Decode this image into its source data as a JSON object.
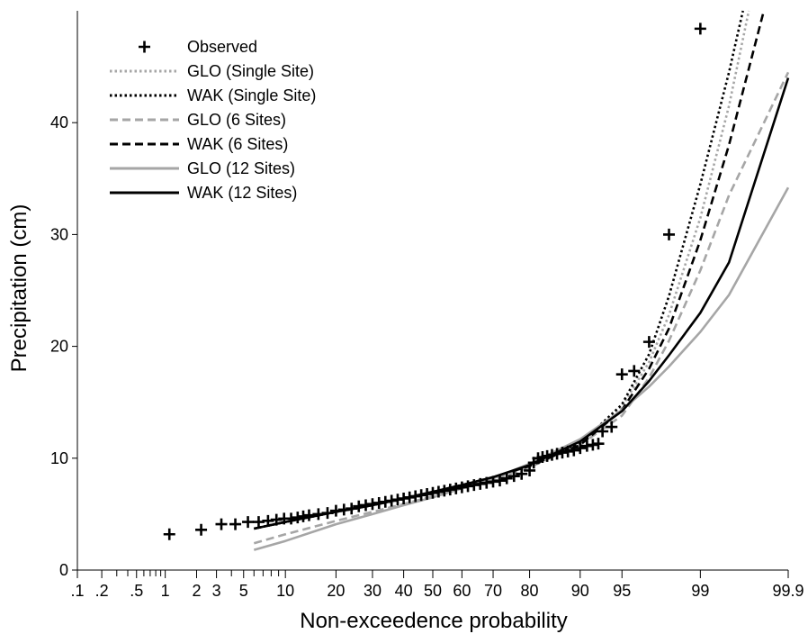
{
  "chart_data": {
    "type": "line",
    "title": "",
    "xlabel": "Non-exceedence probability",
    "ylabel": "Precipitation (cm)",
    "x_scale": "normal probability (%)",
    "xlim": [
      0.1,
      99.9
    ],
    "ylim": [
      0,
      50
    ],
    "x_ticks": [
      {
        "value": 0.1,
        "label": ".1"
      },
      {
        "value": 0.2,
        "label": ".2"
      },
      {
        "value": 0.5,
        "label": ".5"
      },
      {
        "value": 1,
        "label": "1"
      },
      {
        "value": 2,
        "label": "2"
      },
      {
        "value": 3,
        "label": "3"
      },
      {
        "value": 5,
        "label": "5"
      },
      {
        "value": 10,
        "label": "10"
      },
      {
        "value": 20,
        "label": "20"
      },
      {
        "value": 30,
        "label": "30"
      },
      {
        "value": 40,
        "label": "40"
      },
      {
        "value": 50,
        "label": "50"
      },
      {
        "value": 60,
        "label": "60"
      },
      {
        "value": 70,
        "label": "70"
      },
      {
        "value": 80,
        "label": "80"
      },
      {
        "value": 90,
        "label": "90"
      },
      {
        "value": 95,
        "label": "95"
      },
      {
        "value": 99,
        "label": "99"
      },
      {
        "value": 99.9,
        "label": "99.9"
      }
    ],
    "x_minor_ticks": [
      0.3,
      0.4,
      0.6,
      0.7,
      0.8,
      0.9,
      4,
      6,
      7,
      8,
      9
    ],
    "y_ticks": [
      0,
      10,
      20,
      30,
      40
    ],
    "legend_position": "top-left",
    "series": [
      {
        "name": "Observed",
        "kind": "marker",
        "color": "#000000",
        "points": [
          [
            1.1,
            3.2
          ],
          [
            2.2,
            3.6
          ],
          [
            3.3,
            4.1
          ],
          [
            4.3,
            4.1
          ],
          [
            5.4,
            4.3
          ],
          [
            6.5,
            4.3
          ],
          [
            7.6,
            4.4
          ],
          [
            8.7,
            4.5
          ],
          [
            9.8,
            4.6
          ],
          [
            10.9,
            4.6
          ],
          [
            12,
            4.7
          ],
          [
            13,
            4.8
          ],
          [
            14.1,
            4.9
          ],
          [
            16,
            5.0
          ],
          [
            18,
            5.1
          ],
          [
            20,
            5.3
          ],
          [
            22,
            5.4
          ],
          [
            24,
            5.5
          ],
          [
            26,
            5.7
          ],
          [
            28,
            5.8
          ],
          [
            30,
            5.9
          ],
          [
            32,
            6.0
          ],
          [
            34,
            6.1
          ],
          [
            36,
            6.2
          ],
          [
            38,
            6.3
          ],
          [
            40,
            6.4
          ],
          [
            42,
            6.5
          ],
          [
            44,
            6.6
          ],
          [
            46,
            6.7
          ],
          [
            48,
            6.8
          ],
          [
            50,
            6.9
          ],
          [
            52,
            7.0
          ],
          [
            54,
            7.1
          ],
          [
            56,
            7.2
          ],
          [
            58,
            7.3
          ],
          [
            60,
            7.4
          ],
          [
            62,
            7.5
          ],
          [
            64,
            7.6
          ],
          [
            66,
            7.7
          ],
          [
            68,
            7.8
          ],
          [
            70,
            7.9
          ],
          [
            72,
            8.0
          ],
          [
            74,
            8.2
          ],
          [
            76,
            8.4
          ],
          [
            78,
            8.6
          ],
          [
            80,
            8.9
          ],
          [
            81,
            9.6
          ],
          [
            82,
            10.0
          ],
          [
            83,
            10.1
          ],
          [
            84,
            10.2
          ],
          [
            85,
            10.3
          ],
          [
            86,
            10.4
          ],
          [
            87,
            10.5
          ],
          [
            88,
            10.6
          ],
          [
            89,
            10.7
          ],
          [
            90,
            10.9
          ],
          [
            91,
            11.1
          ],
          [
            91.8,
            11.2
          ],
          [
            92.5,
            11.3
          ],
          [
            93,
            12.4
          ],
          [
            94,
            12.8
          ],
          [
            95,
            17.5
          ],
          [
            96,
            17.8
          ],
          [
            97,
            20.4
          ],
          [
            98,
            30.0
          ],
          [
            99,
            48.4
          ]
        ]
      },
      {
        "name": "GLO (Single Site)",
        "kind": "line",
        "color": "#a6a6a6",
        "dash": "dot",
        "points": [
          [
            6,
            3.7
          ],
          [
            10,
            4.3
          ],
          [
            20,
            5.2
          ],
          [
            30,
            5.8
          ],
          [
            40,
            6.4
          ],
          [
            50,
            7.0
          ],
          [
            60,
            7.6
          ],
          [
            70,
            8.3
          ],
          [
            80,
            9.3
          ],
          [
            90,
            11.2
          ],
          [
            95,
            14.6
          ],
          [
            97,
            18.6
          ],
          [
            98,
            22.8
          ],
          [
            99,
            31.5
          ],
          [
            99.5,
            41.5
          ],
          [
            99.7,
            50
          ]
        ]
      },
      {
        "name": "WAK (Single Site)",
        "kind": "line",
        "color": "#000000",
        "dash": "dot",
        "points": [
          [
            6,
            3.7
          ],
          [
            10,
            4.3
          ],
          [
            20,
            5.2
          ],
          [
            30,
            5.8
          ],
          [
            40,
            6.4
          ],
          [
            50,
            7.0
          ],
          [
            60,
            7.6
          ],
          [
            70,
            8.3
          ],
          [
            80,
            9.3
          ],
          [
            90,
            11.3
          ],
          [
            95,
            14.8
          ],
          [
            97,
            19.3
          ],
          [
            98,
            24.5
          ],
          [
            99,
            34.5
          ],
          [
            99.5,
            44.5
          ],
          [
            99.65,
            50
          ]
        ]
      },
      {
        "name": "GLO (6 Sites)",
        "kind": "line",
        "color": "#a6a6a6",
        "dash": "dash",
        "points": [
          [
            6,
            2.4
          ],
          [
            10,
            3.2
          ],
          [
            20,
            4.4
          ],
          [
            30,
            5.2
          ],
          [
            40,
            5.9
          ],
          [
            50,
            6.6
          ],
          [
            60,
            7.3
          ],
          [
            70,
            8.1
          ],
          [
            80,
            9.2
          ],
          [
            90,
            11.2
          ],
          [
            95,
            13.8
          ],
          [
            97,
            17.2
          ],
          [
            98,
            20.5
          ],
          [
            99,
            26.8
          ],
          [
            99.5,
            33.5
          ],
          [
            99.9,
            44.5
          ]
        ]
      },
      {
        "name": "WAK (6 Sites)",
        "kind": "line",
        "color": "#000000",
        "dash": "dash",
        "points": [
          [
            6,
            3.7
          ],
          [
            10,
            4.3
          ],
          [
            20,
            5.2
          ],
          [
            30,
            5.8
          ],
          [
            40,
            6.4
          ],
          [
            50,
            7.0
          ],
          [
            60,
            7.6
          ],
          [
            70,
            8.3
          ],
          [
            80,
            9.3
          ],
          [
            90,
            11.2
          ],
          [
            95,
            14.3
          ],
          [
            97,
            18.0
          ],
          [
            98,
            21.6
          ],
          [
            99,
            29.5
          ],
          [
            99.5,
            38.0
          ],
          [
            99.8,
            50
          ]
        ]
      },
      {
        "name": "GLO (12 Sites)",
        "kind": "line",
        "color": "#a6a6a6",
        "dash": "solid",
        "points": [
          [
            6,
            1.8
          ],
          [
            10,
            2.6
          ],
          [
            20,
            4.1
          ],
          [
            30,
            5.0
          ],
          [
            40,
            5.8
          ],
          [
            50,
            6.5
          ],
          [
            60,
            7.3
          ],
          [
            70,
            8.2
          ],
          [
            80,
            9.5
          ],
          [
            90,
            11.7
          ],
          [
            95,
            14.3
          ],
          [
            97,
            16.4
          ],
          [
            98,
            18.2
          ],
          [
            99,
            21.3
          ],
          [
            99.5,
            24.6
          ],
          [
            99.9,
            34.2
          ]
        ]
      },
      {
        "name": "WAK (12 Sites)",
        "kind": "line",
        "color": "#000000",
        "dash": "solid",
        "points": [
          [
            6,
            3.7
          ],
          [
            10,
            4.3
          ],
          [
            20,
            5.2
          ],
          [
            30,
            5.8
          ],
          [
            40,
            6.4
          ],
          [
            50,
            7.0
          ],
          [
            60,
            7.6
          ],
          [
            70,
            8.3
          ],
          [
            80,
            9.4
          ],
          [
            90,
            11.5
          ],
          [
            95,
            14.2
          ],
          [
            97,
            16.9
          ],
          [
            98,
            19.2
          ],
          [
            99,
            23.0
          ],
          [
            99.5,
            27.5
          ],
          [
            99.9,
            44.0
          ]
        ]
      }
    ]
  }
}
